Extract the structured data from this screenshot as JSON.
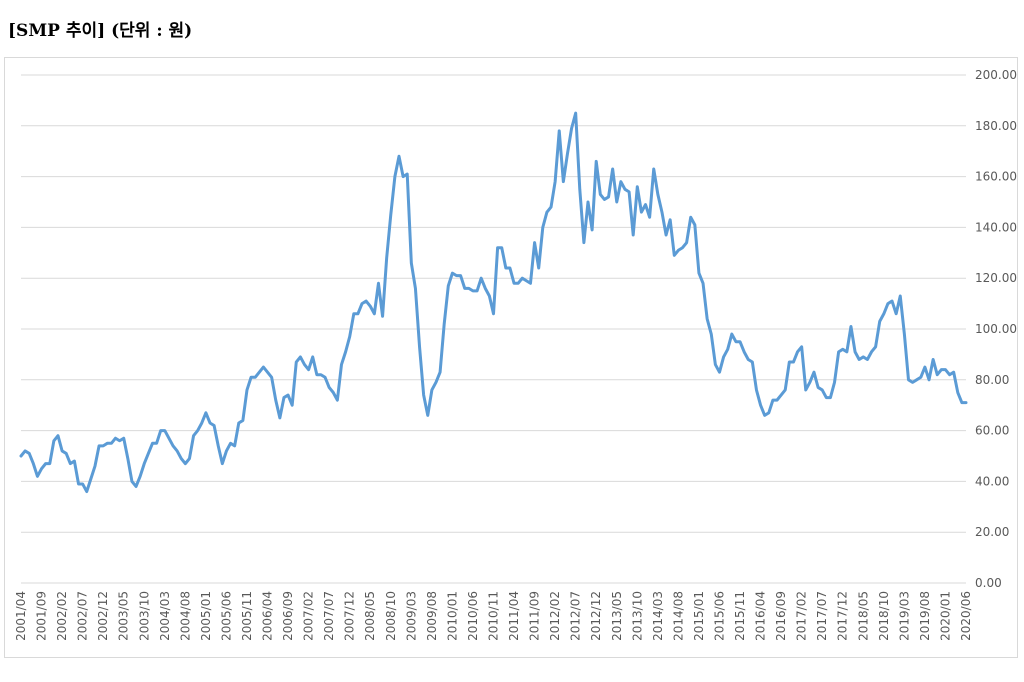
{
  "title": "[SMP 추이] (단위 : 원)",
  "colors": {
    "line": "#5b9bd5",
    "grid": "#d9d9d9",
    "tick_text": "#595959"
  },
  "chart_data": {
    "type": "line",
    "title": "[SMP 추이] (단위 : 원)",
    "xlabel": "",
    "ylabel": "",
    "ylim": [
      0,
      200
    ],
    "y_ticks": [
      "0.00",
      "20.00",
      "40.00",
      "60.00",
      "80.00",
      "100.00",
      "120.00",
      "140.00",
      "160.00",
      "180.00",
      "200.00"
    ],
    "x_tick_labels": [
      "2001/04",
      "2001/09",
      "2002/02",
      "2002/07",
      "2002/12",
      "2003/05",
      "2003/10",
      "2004/03",
      "2004/08",
      "2005/01",
      "2005/06",
      "2005/11",
      "2006/04",
      "2006/09",
      "2007/02",
      "2007/07",
      "2007/12",
      "2008/05",
      "2008/10",
      "2009/03",
      "2009/08",
      "2010/01",
      "2010/06",
      "2010/11",
      "2011/04",
      "2011/09",
      "2012/02",
      "2012/07",
      "2012/12",
      "2013/05",
      "2013/10",
      "2014/03",
      "2014/08",
      "2015/01",
      "2015/06",
      "2015/11",
      "2016/04",
      "2016/09",
      "2017/02",
      "2017/07",
      "2017/12",
      "2018/05",
      "2018/10",
      "2019/03",
      "2019/08",
      "2020/01",
      "2020/06"
    ],
    "grid": true,
    "legend": "none",
    "series": [
      {
        "start": "2001/04",
        "end": "2020/06",
        "values": [
          50,
          52,
          51,
          47,
          42,
          45,
          47,
          47,
          56,
          58,
          52,
          51,
          47,
          48,
          39,
          39,
          36,
          41,
          46,
          54,
          54,
          55,
          55,
          57,
          56,
          57,
          49,
          40,
          38,
          42,
          47,
          51,
          55,
          55,
          60,
          60,
          57,
          54,
          52,
          49,
          47,
          49,
          58,
          60,
          63,
          67,
          63,
          62,
          54,
          47,
          52,
          55,
          54,
          63,
          64,
          76,
          81,
          81,
          83,
          85,
          83,
          81,
          72,
          65,
          73,
          74,
          70,
          87,
          89,
          86,
          84,
          89,
          82,
          82,
          81,
          77,
          75,
          72,
          86,
          91,
          97,
          106,
          106,
          110,
          111,
          109,
          106,
          118,
          105,
          128,
          145,
          160,
          168,
          160,
          161,
          126,
          116,
          93,
          74,
          66,
          76,
          79,
          83,
          102,
          117,
          122,
          121,
          121,
          116,
          116,
          115,
          115,
          120,
          116,
          113,
          106,
          132,
          132,
          124,
          124,
          118,
          118,
          120,
          119,
          118,
          134,
          124,
          140,
          146,
          148,
          158,
          178,
          158,
          169,
          179,
          185,
          155,
          134,
          150,
          139,
          166,
          153,
          151,
          152,
          163,
          150,
          158,
          155,
          154,
          137,
          156,
          146,
          149,
          144,
          163,
          153,
          146,
          137,
          143,
          129,
          131,
          132,
          134,
          144,
          141,
          122,
          118,
          104,
          98,
          86,
          83,
          89,
          92,
          98,
          95,
          95,
          91,
          88,
          87,
          76,
          70,
          66,
          67,
          72,
          72,
          74,
          76,
          87,
          87,
          91,
          93,
          76,
          79,
          83,
          77,
          76,
          73,
          73,
          79,
          91,
          92,
          91,
          101,
          91,
          88,
          89,
          88,
          91,
          93,
          103,
          106,
          110,
          111,
          106,
          113,
          98,
          80,
          79,
          80,
          81,
          85,
          80,
          88,
          82,
          84,
          84,
          82,
          83,
          75,
          71,
          71
        ]
      }
    ]
  }
}
